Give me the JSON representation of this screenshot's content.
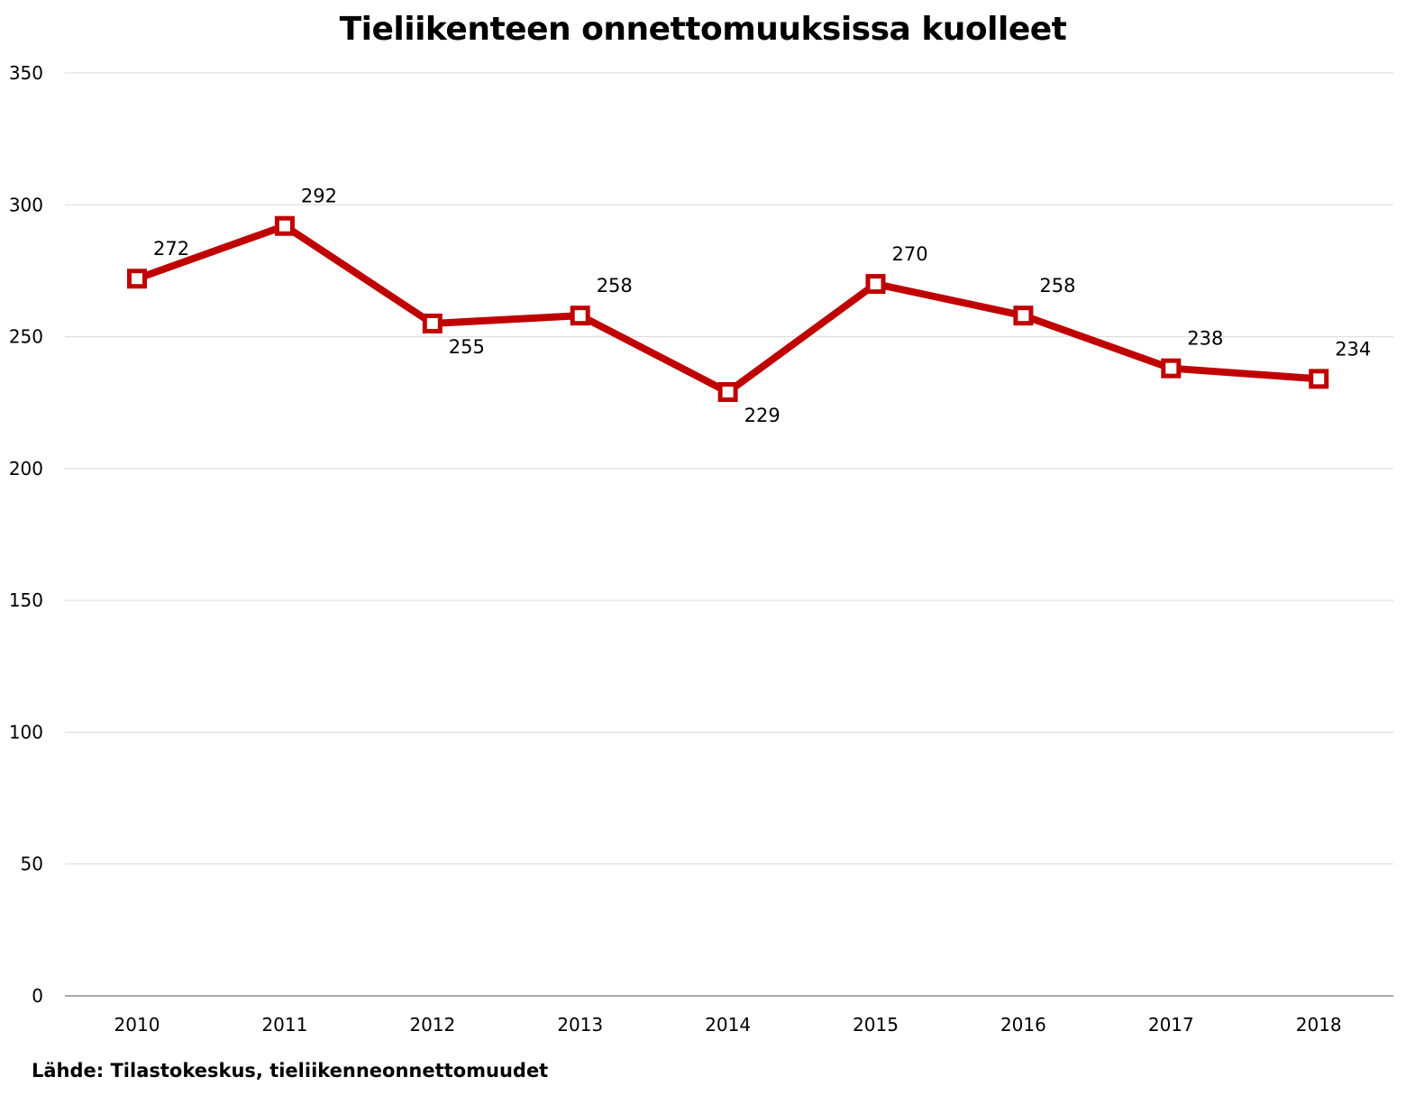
{
  "chart_data": {
    "type": "line",
    "title": "Tieliikenteen onnettomuuksissa kuolleet",
    "xlabel": "",
    "ylabel": "",
    "categories": [
      "2010",
      "2011",
      "2012",
      "2013",
      "2014",
      "2015",
      "2016",
      "2017",
      "2018"
    ],
    "series": [
      {
        "values": [
          272,
          292,
          255,
          258,
          229,
          270,
          258,
          238,
          234
        ],
        "color": "#c00000",
        "marker": "hollow-square"
      }
    ],
    "data_labels": [
      "272",
      "292",
      "255",
      "258",
      "229",
      "270",
      "258",
      "238",
      "234"
    ],
    "ylim": [
      0,
      350
    ],
    "yticks": [
      "0",
      "50",
      "100",
      "150",
      "200",
      "250",
      "300",
      "350"
    ],
    "grid": true,
    "legend": "none",
    "source": "Lähde: Tilastokeskus, tieliikenneonnettomuudet"
  }
}
